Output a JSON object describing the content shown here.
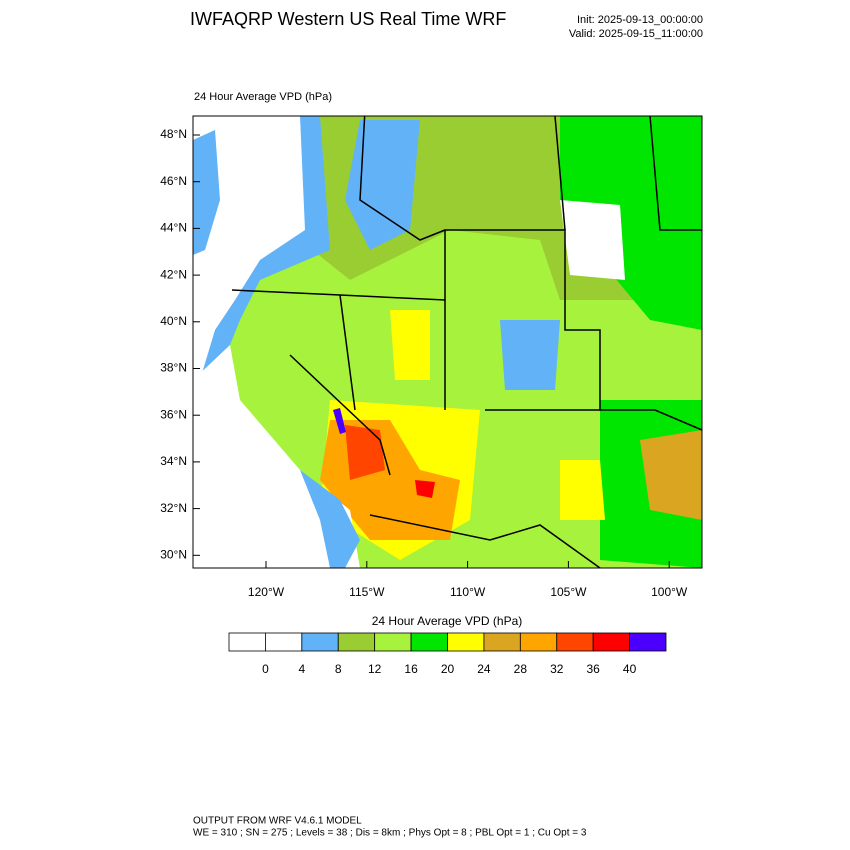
{
  "header": {
    "title": "IWFAQRP Western US Real Time WRF",
    "init": "Init: 2025-09-13_00:00:00",
    "valid": "Valid: 2025-09-15_11:00:00"
  },
  "map": {
    "label": "24 Hour Average VPD   (hPa)",
    "lat_labels": [
      "48°N",
      "46°N",
      "44°N",
      "42°N",
      "40°N",
      "38°N",
      "36°N",
      "34°N",
      "32°N",
      "30°N"
    ],
    "lon_labels": [
      "120°W",
      "115°W",
      "110°W",
      "105°W",
      "100°W"
    ]
  },
  "colorbar": {
    "title": "24 Hour Average VPD  (hPa)",
    "levels": [
      0,
      4,
      8,
      12,
      16,
      20,
      24,
      28,
      32,
      36,
      40
    ],
    "colors": [
      "#ffffff",
      "#ffffff",
      "#62b2f8",
      "#9acd32",
      "#a6f23c",
      "#00e600",
      "#ffff00",
      "#daa520",
      "#ffa500",
      "#ff4500",
      "#ff0000",
      "#4b00ff"
    ]
  },
  "footer": {
    "line1": "OUTPUT FROM WRF V4.6.1 MODEL",
    "line2": "WE = 310 ; SN = 275 ; Levels = 38 ; Dis = 8km ; Phys Opt = 8 ; PBL Opt = 1 ; Cu Opt = 3"
  }
}
